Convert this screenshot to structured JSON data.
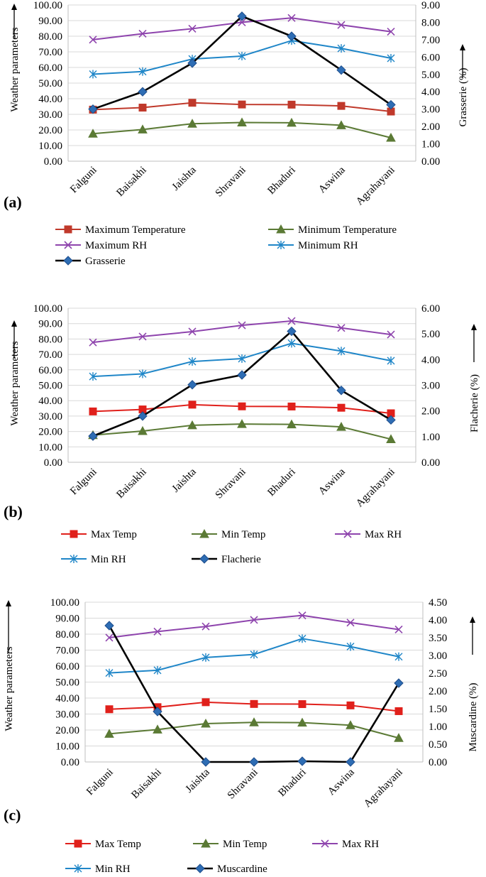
{
  "chart_data": [
    {
      "type": "line",
      "panel_label": "(a)",
      "categories": [
        "Falguni",
        "Baisakhi",
        "Jaishta",
        "Shravani",
        "Bhaduri",
        "Aswina",
        "Agrahayani"
      ],
      "ylabel": "Weather parameters",
      "y2label": "Grasserie (%)",
      "ylim": [
        0,
        100
      ],
      "y2lim": [
        0,
        9
      ],
      "yticks": [
        "0.00",
        "10.00",
        "20.00",
        "30.00",
        "40.00",
        "50.00",
        "60.00",
        "70.00",
        "80.00",
        "90.00",
        "100.00"
      ],
      "y2ticks": [
        "0.00",
        "1.00",
        "2.00",
        "3.00",
        "4.00",
        "5.00",
        "6.00",
        "7.00",
        "8.00",
        "9.00"
      ],
      "grid": true,
      "legend_position": "bottom",
      "series": [
        {
          "name": "Maximum Temperature",
          "axis": "left",
          "color": "#C0392B",
          "marker": "square",
          "values": [
            33.0,
            34.3,
            37.4,
            36.3,
            36.2,
            35.4,
            31.8
          ]
        },
        {
          "name": "Minimum Temperature",
          "axis": "left",
          "color": "#5B7A35",
          "marker": "triangle",
          "values": [
            17.6,
            20.3,
            24.0,
            24.8,
            24.6,
            23.0,
            15.0
          ]
        },
        {
          "name": "Maximum RH",
          "axis": "left",
          "color": "#8E44AD",
          "marker": "x",
          "values": [
            77.8,
            81.6,
            84.8,
            88.9,
            91.7,
            87.2,
            82.9
          ]
        },
        {
          "name": "Minimum RH",
          "axis": "left",
          "color": "#1F86C8",
          "marker": "star",
          "values": [
            55.7,
            57.4,
            65.4,
            67.3,
            77.2,
            72.2,
            65.9
          ]
        },
        {
          "name": "Grasserie",
          "axis": "right",
          "color": "#000000",
          "marker": "diamond",
          "values": [
            3.0,
            4.0,
            5.65,
            8.35,
            7.2,
            5.25,
            3.25
          ]
        }
      ]
    },
    {
      "type": "line",
      "panel_label": "(b)",
      "categories": [
        "Falguni",
        "Baisakhi",
        "Jaishta",
        "Shravani",
        "Bhaduri",
        "Aswina",
        "Agrahayani"
      ],
      "ylabel": "Weather parameters",
      "y2label": "Flacherie (%)",
      "ylim": [
        0,
        100
      ],
      "y2lim": [
        0,
        6
      ],
      "yticks": [
        "0.00",
        "10.00",
        "20.00",
        "30.00",
        "40.00",
        "50.00",
        "60.00",
        "70.00",
        "80.00",
        "90.00",
        "100.00"
      ],
      "y2ticks": [
        "0.00",
        "1.00",
        "2.00",
        "3.00",
        "4.00",
        "5.00",
        "6.00"
      ],
      "grid": true,
      "legend_position": "bottom",
      "series": [
        {
          "name": "Max Temp",
          "axis": "left",
          "color": "#E0201B",
          "marker": "square",
          "values": [
            33.0,
            34.3,
            37.4,
            36.3,
            36.2,
            35.4,
            31.8
          ]
        },
        {
          "name": "Min Temp",
          "axis": "left",
          "color": "#5B7A35",
          "marker": "triangle",
          "values": [
            17.6,
            20.3,
            24.0,
            24.8,
            24.6,
            23.0,
            15.0
          ]
        },
        {
          "name": "Max RH",
          "axis": "left",
          "color": "#8E44AD",
          "marker": "x",
          "values": [
            77.8,
            81.6,
            84.8,
            88.9,
            91.7,
            87.2,
            82.9
          ]
        },
        {
          "name": "Min RH",
          "axis": "left",
          "color": "#1F86C8",
          "marker": "star",
          "values": [
            55.7,
            57.4,
            65.4,
            67.3,
            77.2,
            72.2,
            65.9
          ]
        },
        {
          "name": "Flacherie",
          "axis": "right",
          "color": "#000000",
          "marker": "diamond",
          "values": [
            1.02,
            1.8,
            3.02,
            3.4,
            5.1,
            2.8,
            1.65
          ]
        }
      ]
    },
    {
      "type": "line",
      "panel_label": "(c)",
      "categories": [
        "Falguni",
        "Baisakhi",
        "Jaishta",
        "Shravani",
        "Bhaduri",
        "Aswina",
        "Agrahayani"
      ],
      "ylabel": "Weather parameters",
      "y2label": "Muscardine (%)",
      "ylim": [
        0,
        100
      ],
      "y2lim": [
        0,
        4.5
      ],
      "yticks": [
        "0.00",
        "10.00",
        "20.00",
        "30.00",
        "40.00",
        "50.00",
        "60.00",
        "70.00",
        "80.00",
        "90.00",
        "100.00"
      ],
      "y2ticks": [
        "0.00",
        "0.50",
        "1.00",
        "1.50",
        "2.00",
        "2.50",
        "3.00",
        "3.50",
        "4.00",
        "4.50"
      ],
      "grid": true,
      "legend_position": "bottom",
      "series": [
        {
          "name": "Max Temp",
          "axis": "left",
          "color": "#E0201B",
          "marker": "square",
          "values": [
            33.0,
            34.3,
            37.4,
            36.3,
            36.2,
            35.4,
            31.8
          ]
        },
        {
          "name": "Min Temp",
          "axis": "left",
          "color": "#5B7A35",
          "marker": "triangle",
          "values": [
            17.6,
            20.3,
            24.0,
            24.8,
            24.6,
            23.0,
            15.0
          ]
        },
        {
          "name": "Max RH",
          "axis": "left",
          "color": "#8E44AD",
          "marker": "x",
          "values": [
            77.8,
            81.6,
            84.8,
            88.9,
            91.7,
            87.2,
            82.9
          ]
        },
        {
          "name": "Min RH",
          "axis": "left",
          "color": "#1F86C8",
          "marker": "star",
          "values": [
            55.7,
            57.4,
            65.4,
            67.3,
            77.2,
            72.2,
            65.9
          ]
        },
        {
          "name": "Muscardine",
          "axis": "right",
          "color": "#000000",
          "marker": "diamond",
          "values": [
            3.84,
            1.42,
            0.0,
            0.0,
            0.02,
            0.0,
            2.22
          ]
        }
      ]
    }
  ]
}
